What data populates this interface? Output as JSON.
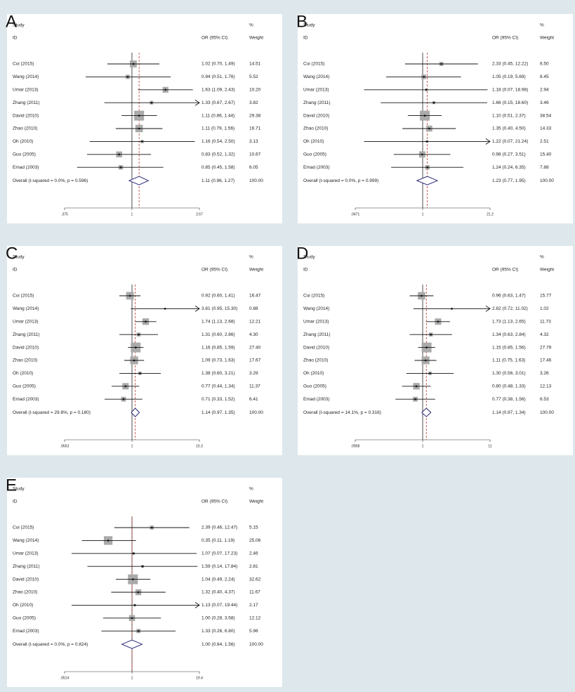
{
  "chart_data": [
    {
      "type": "forest",
      "label": "A",
      "study_header": "Study",
      "id_header": "ID",
      "effect_header": "OR (95% CI)",
      "percent_header": "%",
      "weight_header": "Weight",
      "categories": [
        "Cui (2015)",
        "Wang (2014)",
        "Umar (2013)",
        "Zhang (2011)",
        "David (2010)",
        "Zhao (2010)",
        "Oh (2010)",
        "Guo (2005)",
        "Emad (2003)"
      ],
      "values": [
        1.02,
        0.94,
        1.63,
        1.33,
        1.11,
        1.11,
        1.16,
        0.83,
        0.85
      ],
      "lower": [
        0.7,
        0.51,
        1.09,
        0.67,
        0.86,
        0.79,
        0.54,
        0.52,
        0.45
      ],
      "upper": [
        1.49,
        1.76,
        2.43,
        2.67,
        1.44,
        1.56,
        2.5,
        1.32,
        1.58
      ],
      "value_labels": [
        "1.02 (0.70, 1.49)",
        "0.94 (0.51, 1.76)",
        "1.63 (1.09, 2.43)",
        "1.33 (0.67, 2.67)",
        "1.11 (0.86, 1.44)",
        "1.11 (0.79, 1.56)",
        "1.16 (0.54, 2.50)",
        "0.83 (0.52, 1.32)",
        "0.85 (0.45, 1.58)"
      ],
      "weights": [
        14.51,
        5.52,
        10.2,
        3.82,
        29.38,
        16.71,
        3.13,
        10.67,
        6.05
      ],
      "weight_labels": [
        "14.51",
        "5.52",
        "10.20",
        "3.82",
        "29.38",
        "16.71",
        "3.13",
        "10.67",
        "6.05"
      ],
      "overall": {
        "label": "Overall (I-squared = 0.0%, p = 0.596)",
        "value": 1.11,
        "lower": 0.96,
        "upper": 1.27,
        "value_label": "1.11 (0.96, 1.27)",
        "weight": 100,
        "weight_label": "100.00"
      },
      "xscale": "log",
      "xlim": [
        0.375,
        2.67
      ],
      "xticks": [
        {
          "value": 0.375,
          "label": ".375"
        },
        1,
        2.67
      ]
    },
    {
      "type": "forest",
      "label": "B",
      "study_header": "Study",
      "id_header": "ID",
      "effect_header": "OR (95% CI)",
      "percent_header": "%",
      "weight_header": "Weight",
      "categories": [
        "Cui (2015)",
        "Wang (2014)",
        "Umar (2013)",
        "Zhang (2011)",
        "David (2010)",
        "Zhao (2010)",
        "Oh (2010)",
        "Guo (2005)",
        "Emad (2003)"
      ],
      "values": [
        2.33,
        1.05,
        1.18,
        1.66,
        1.1,
        1.35,
        1.22,
        0.98,
        1.24
      ],
      "lower": [
        0.45,
        0.19,
        0.07,
        0.15,
        0.51,
        0.4,
        0.07,
        0.27,
        0.24
      ],
      "upper": [
        12.22,
        5.69,
        18.98,
        18.6,
        2.37,
        4.5,
        21.24,
        3.51,
        6.35
      ],
      "value_labels": [
        "2.33 (0.45, 12.22)",
        "1.05 (0.19, 5.69)",
        "1.18 (0.07, 18.98)",
        "1.66 (0.15, 18.60)",
        "1.10 (0.51, 2.37)",
        "1.35 (0.40, 4.50)",
        "1.22 (0.07, 21.24)",
        "0.98 (0.27, 3.51)",
        "1.24 (0.24, 6.35)"
      ],
      "weights": [
        6.5,
        8.45,
        2.94,
        3.46,
        38.54,
        14.33,
        2.51,
        15.4,
        7.88
      ],
      "weight_labels": [
        "6.50",
        "8.45",
        "2.94",
        "3.46",
        "38.54",
        "14.33",
        "2.51",
        "15.40",
        "7.88"
      ],
      "overall": {
        "label": "Overall (I-squared = 0.0%, p = 0.999)",
        "value": 1.23,
        "lower": 0.77,
        "upper": 1.95,
        "value_label": "1.23 (0.77, 1.95)",
        "weight": 100,
        "weight_label": "100.00"
      },
      "xscale": "log",
      "xlim": [
        0.0471,
        21.2
      ],
      "xticks": [
        {
          "value": 0.0471,
          "label": ".0471"
        },
        1,
        21.2
      ]
    },
    {
      "type": "forest",
      "label": "C",
      "study_header": "Study",
      "id_header": "ID",
      "effect_header": "OR (95% CI)",
      "percent_header": "%",
      "weight_header": "Weight",
      "categories": [
        "Cui (2015)",
        "Wang (2014)",
        "Umar (2013)",
        "Zhang (2011)",
        "David (2010)",
        "Zhao (2010)",
        "Oh (2010)",
        "Guo (2005)",
        "Emad (2003)"
      ],
      "values": [
        0.92,
        3.81,
        1.74,
        1.31,
        1.16,
        1.09,
        1.38,
        0.77,
        0.71
      ],
      "lower": [
        0.6,
        0.95,
        1.13,
        0.6,
        0.85,
        0.73,
        0.6,
        0.44,
        0.33
      ],
      "upper": [
        1.41,
        15.3,
        2.68,
        2.86,
        1.59,
        1.63,
        3.21,
        1.34,
        1.52
      ],
      "value_labels": [
        "0.92 (0.60, 1.41)",
        "3.81 (0.95, 15.30)",
        "1.74 (1.13, 2.68)",
        "1.31 (0.60, 2.86)",
        "1.16 (0.85, 1.59)",
        "1.09 (0.73, 1.63)",
        "1.38 (0.60, 3.21)",
        "0.77 (0.44, 1.34)",
        "0.71 (0.33, 1.52)"
      ],
      "weights": [
        16.47,
        0.88,
        12.21,
        4.3,
        27.4,
        17.67,
        3.29,
        11.37,
        6.41
      ],
      "weight_labels": [
        "16.47",
        "0.88",
        "12.21",
        "4.30",
        "27.40",
        "17.67",
        "3.29",
        "11.37",
        "6.41"
      ],
      "overall": {
        "label": "Overall (I-squared = 29.8%, p = 0.180)",
        "value": 1.14,
        "lower": 0.97,
        "upper": 1.35,
        "value_label": "1.14 (0.97, 1.35)",
        "weight": 100,
        "weight_label": "100.00"
      },
      "xscale": "log",
      "xlim": [
        0.0653,
        15.3
      ],
      "xticks": [
        {
          "value": 0.0653,
          "label": ".0653"
        },
        1,
        15.3
      ]
    },
    {
      "type": "forest",
      "label": "D",
      "study_header": "Study",
      "id_header": "ID",
      "effect_header": "OR (95% CI)",
      "percent_header": "%",
      "weight_header": "Weight",
      "categories": [
        "Cui (2015)",
        "Wang (2014)",
        "Umar (2013)",
        "Zhang (2011)",
        "David (2010)",
        "Zhao (2010)",
        "Oh (2010)",
        "Guo (2005)",
        "Emad (2003)"
      ],
      "values": [
        0.96,
        2.82,
        1.73,
        1.34,
        1.15,
        1.11,
        1.3,
        0.8,
        0.77
      ],
      "lower": [
        0.63,
        0.72,
        1.13,
        0.63,
        0.85,
        0.75,
        0.56,
        0.48,
        0.38
      ],
      "upper": [
        1.47,
        11.02,
        2.65,
        2.84,
        1.56,
        1.63,
        3.01,
        1.33,
        1.56
      ],
      "value_labels": [
        "0.96 (0.63, 1.47)",
        "2.82 (0.72, 11.02)",
        "1.73 (1.13, 2.65)",
        "1.34 (0.63, 2.84)",
        "1.15 (0.85, 1.56)",
        "1.11 (0.75, 1.63)",
        "1.30 (0.56, 3.01)",
        "0.80 (0.48, 1.33)",
        "0.77 (0.38, 1.56)"
      ],
      "weights": [
        15.77,
        1.02,
        11.73,
        4.32,
        27.79,
        17.46,
        3.26,
        12.13,
        6.53
      ],
      "weight_labels": [
        "15.77",
        "1.02",
        "11.73",
        "4.32",
        "27.79",
        "17.46",
        "3.26",
        "12.13",
        "6.53"
      ],
      "overall": {
        "label": "Overall (I-squared = 14.1%, p = 0.316)",
        "value": 1.14,
        "lower": 0.97,
        "upper": 1.34,
        "value_label": "1.14 (0.97, 1.34)",
        "weight": 100,
        "weight_label": "100.00"
      },
      "xscale": "log",
      "xlim": [
        0.0908,
        11
      ],
      "xticks": [
        {
          "value": 0.0908,
          "label": ".0908"
        },
        1,
        11
      ]
    },
    {
      "type": "forest",
      "label": "E",
      "study_header": "Study",
      "id_header": "ID",
      "effect_header": "OR (95% CI)",
      "percent_header": "%",
      "weight_header": "Weight",
      "categories": [
        "Cui (2015)",
        "Wang (2014)",
        "Umar (2013)",
        "Zhang (2011)",
        "David (2010)",
        "Zhao (2010)",
        "Oh (2010)",
        "Guo (2005)",
        "Emad (2003)"
      ],
      "values": [
        2.39,
        0.35,
        1.07,
        1.59,
        1.04,
        1.32,
        1.13,
        1.0,
        1.33
      ],
      "lower": [
        0.46,
        0.11,
        0.07,
        0.14,
        0.49,
        0.4,
        0.07,
        0.28,
        0.26
      ],
      "upper": [
        12.47,
        1.19,
        17.23,
        17.84,
        2.24,
        4.37,
        19.44,
        3.58,
        6.8
      ],
      "value_labels": [
        "2.39 (0.46, 12.47)",
        "0.35 (0.11, 1.19)",
        "1.07 (0.07, 17.23)",
        "1.59 (0.14, 17.84)",
        "1.04 (0.49, 2.24)",
        "1.32 (0.40, 4.37)",
        "1.13 (0.07, 19.44)",
        "1.00 (0.28, 3.58)",
        "1.33 (0.26, 6.80)"
      ],
      "weights": [
        5.15,
        25.06,
        2.46,
        2.81,
        32.62,
        11.67,
        2.17,
        12.12,
        5.96
      ],
      "weight_labels": [
        "5.15",
        "25.06",
        "2.46",
        "2.81",
        "32.62",
        "11.67",
        "2.17",
        "12.12",
        "5.96"
      ],
      "overall": {
        "label": "Overall (I-squared = 0.0%, p = 0.824)",
        "value": 1.0,
        "lower": 0.64,
        "upper": 1.56,
        "value_label": "1.00 (0.64, 1.56)",
        "weight": 100,
        "weight_label": "100.00"
      },
      "xscale": "log",
      "xlim": [
        0.0514,
        19.4
      ],
      "xticks": [
        {
          "value": 0.0514,
          "label": ".0514"
        },
        1,
        19.4
      ]
    }
  ]
}
